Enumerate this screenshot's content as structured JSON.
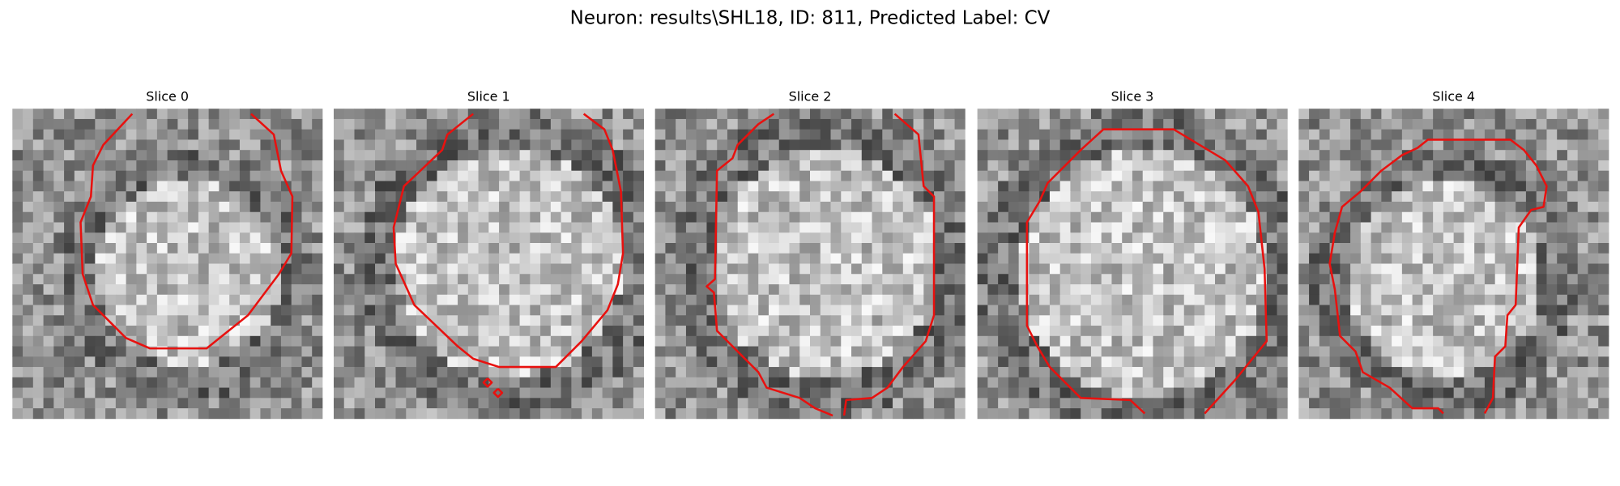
{
  "title": "Neuron: results\\SHL18, ID: 811, Predicted Label: CV",
  "panels": [
    {
      "title": "Slice 0"
    },
    {
      "title": "Slice 1"
    },
    {
      "title": "Slice 2"
    },
    {
      "title": "Slice 3"
    },
    {
      "title": "Slice 4"
    }
  ]
}
